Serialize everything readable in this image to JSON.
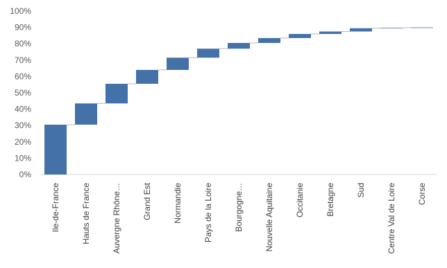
{
  "chart_data": {
    "type": "bar",
    "subtype": "waterfall",
    "title": "",
    "xlabel": "",
    "ylabel": "",
    "ylim": [
      0,
      100
    ],
    "y_ticks": [
      "0%",
      "10%",
      "20%",
      "30%",
      "40%",
      "50%",
      "60%",
      "70%",
      "80%",
      "90%",
      "100%"
    ],
    "categories": [
      "Ile-de-France",
      "Hauts de France",
      "Auvergne Rhône…",
      "Grand Est",
      "Normandie",
      "Pays de la Loire",
      "Bourgogne…",
      "Nouvelle Aquitaine",
      "Occitanie",
      "Bretagne",
      "Sud",
      "Centre Val de Loire",
      "Corse"
    ],
    "values": [
      30.5,
      13.0,
      12.0,
      8.5,
      7.5,
      5.5,
      3.5,
      3.0,
      2.5,
      1.5,
      2.0,
      0.3,
      0.2
    ],
    "grid": false,
    "legend": "none",
    "bar_color": "#4472A8"
  }
}
